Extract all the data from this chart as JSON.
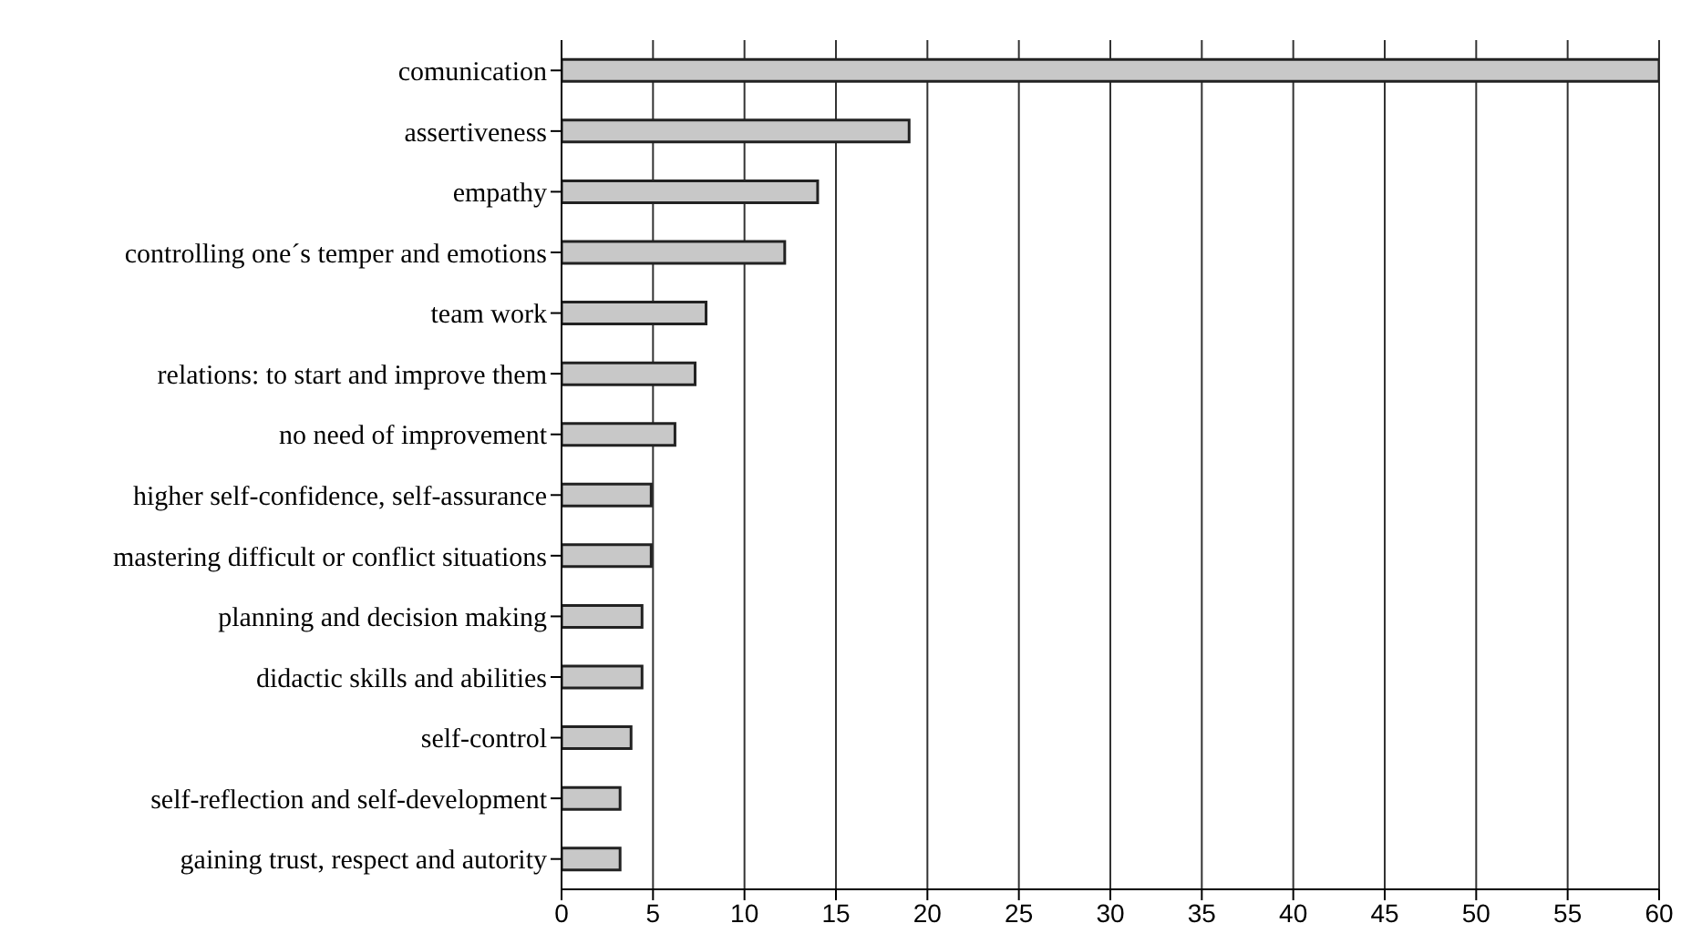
{
  "chart_data": {
    "type": "bar",
    "orientation": "horizontal",
    "categories": [
      "comunication",
      "assertiveness",
      "empathy",
      "controlling one´s temper and emotions",
      "team work",
      "relations: to start and improve them",
      "no need of improvement",
      "higher self-confidence, self-assurance",
      "mastering difficult or conflict situations",
      "planning and decision making",
      "didactic skills and abilities",
      "self-control",
      "self-reflection and self-development",
      "gaining trust, respect and autority"
    ],
    "values": [
      60,
      19,
      14,
      12.2,
      7.9,
      7.3,
      6.2,
      4.9,
      4.9,
      4.4,
      4.4,
      3.8,
      3.2,
      3.2
    ],
    "color": "#c8c8c8",
    "xlim": [
      0,
      60
    ],
    "xticks": [
      0,
      5,
      10,
      15,
      20,
      25,
      30,
      35,
      40,
      45,
      50,
      55,
      60
    ],
    "grid": "x"
  }
}
